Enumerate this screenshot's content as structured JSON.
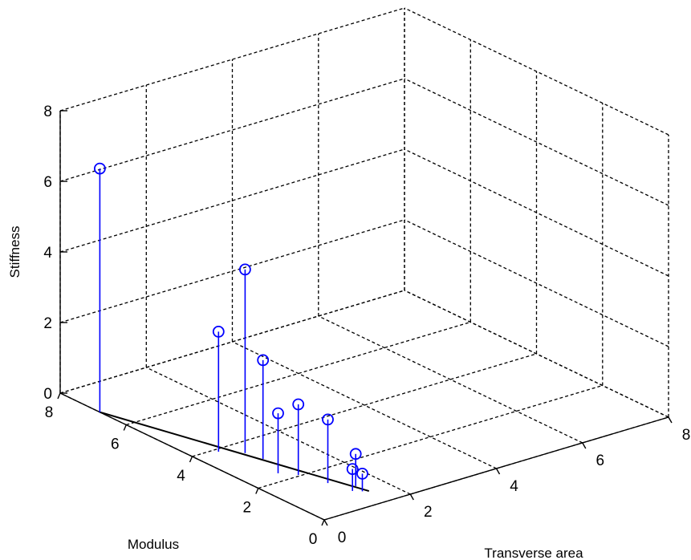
{
  "chart_data": {
    "type": "scatter",
    "subtype": "3d-stem",
    "xlabel": "Transverse area",
    "ylabel": "Modulus",
    "zlabel": "Stiffness",
    "xlim": [
      0,
      8
    ],
    "ylim": [
      0,
      8
    ],
    "zlim": [
      0,
      8
    ],
    "x_ticks": [
      "0",
      "2",
      "4",
      "6",
      "8"
    ],
    "y_ticks": [
      "0",
      "2",
      "4",
      "6",
      "8"
    ],
    "z_ticks": [
      "0",
      "2",
      "4",
      "6",
      "8"
    ],
    "grid": true,
    "marker": "circle",
    "color": "#0000ff",
    "points": [
      {
        "x": 0.0,
        "y": 6.8,
        "z": 6.9
      },
      {
        "x": 0.52,
        "y": 3.88,
        "z": 3.4
      },
      {
        "x": 0.86,
        "y": 3.52,
        "z": 5.2
      },
      {
        "x": 0.94,
        "y": 3.08,
        "z": 2.8
      },
      {
        "x": 0.73,
        "y": 2.35,
        "z": 1.7
      },
      {
        "x": 0.97,
        "y": 2.05,
        "z": 2.0
      },
      {
        "x": 1.15,
        "y": 1.39,
        "z": 1.8
      },
      {
        "x": 1.46,
        "y": 0.95,
        "z": 0.91
      },
      {
        "x": 1.27,
        "y": 0.8,
        "z": 0.62
      },
      {
        "x": 1.4,
        "y": 0.67,
        "z": 0.5
      }
    ],
    "fit_line": {
      "from": {
        "x": 0.0,
        "y": 6.8
      },
      "to": {
        "x": 1.5,
        "y": 0.6
      }
    }
  }
}
